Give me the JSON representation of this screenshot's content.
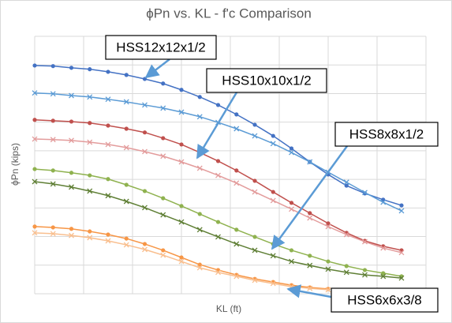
{
  "chart_data": {
    "type": "line",
    "title": "ϕPn vs. KL - f'c Comparison",
    "x_label": "KL (ft)",
    "y_label": "ϕPn (kips)",
    "x": [
      0,
      0.375,
      0.75,
      1.125,
      1.5,
      1.875,
      2.25,
      2.625,
      3,
      3.375,
      3.75,
      4.125,
      4.5,
      4.875,
      5.25,
      5.625,
      6,
      6.375,
      6.75,
      7.125,
      7.5
    ],
    "xlim": [
      0,
      8
    ],
    "xticks": [
      0,
      1,
      2,
      3,
      4,
      5,
      6,
      7,
      8
    ],
    "ylim": [
      0,
      9
    ],
    "yticks": [
      0,
      1,
      2,
      3,
      4,
      5,
      6,
      7,
      8,
      9
    ],
    "grid": true,
    "series": [
      {
        "color": "#4472c4",
        "marker": "circle",
        "values": [
          7.98,
          7.96,
          7.9,
          7.85,
          7.76,
          7.65,
          7.51,
          7.35,
          7.13,
          6.88,
          6.6,
          6.27,
          5.91,
          5.52,
          5.08,
          4.61,
          4.17,
          3.78,
          3.51,
          3.29,
          3.09
        ]
      },
      {
        "color": "#5b9bd5",
        "marker": "x",
        "values": [
          7.02,
          6.99,
          6.93,
          6.88,
          6.8,
          6.71,
          6.6,
          6.49,
          6.35,
          6.19,
          5.99,
          5.77,
          5.52,
          5.25,
          4.94,
          4.61,
          4.25,
          3.9,
          3.54,
          3.2,
          2.9
        ]
      },
      {
        "color": "#c0504d",
        "marker": "circle",
        "values": [
          6.08,
          6.05,
          6.02,
          5.97,
          5.88,
          5.77,
          5.64,
          5.44,
          5.22,
          4.94,
          4.64,
          4.31,
          3.95,
          3.56,
          3.18,
          2.82,
          2.46,
          2.13,
          1.85,
          1.66,
          1.52
        ]
      },
      {
        "color": "#e39c9c",
        "marker": "x",
        "values": [
          5.41,
          5.39,
          5.36,
          5.3,
          5.22,
          5.11,
          4.97,
          4.81,
          4.61,
          4.39,
          4.14,
          3.87,
          3.56,
          3.26,
          2.96,
          2.65,
          2.35,
          2.07,
          1.82,
          1.6,
          1.44
        ]
      },
      {
        "color": "#8fb24f",
        "marker": "circle",
        "values": [
          4.36,
          4.31,
          4.23,
          4.14,
          4.01,
          3.81,
          3.59,
          3.34,
          3.07,
          2.79,
          2.51,
          2.24,
          1.99,
          1.74,
          1.52,
          1.33,
          1.13,
          0.97,
          0.83,
          0.72,
          0.61
        ]
      },
      {
        "color": "#5f7f35",
        "marker": "x",
        "values": [
          3.92,
          3.84,
          3.73,
          3.59,
          3.43,
          3.23,
          3.01,
          2.76,
          2.51,
          2.24,
          1.99,
          1.74,
          1.52,
          1.33,
          1.13,
          0.99,
          0.86,
          0.75,
          0.66,
          0.61,
          0.55
        ]
      },
      {
        "color": "#f79646",
        "marker": "circle",
        "values": [
          2.35,
          2.32,
          2.27,
          2.18,
          2.07,
          1.93,
          1.74,
          1.52,
          1.27,
          1.02,
          0.83,
          0.66,
          0.52,
          0.41,
          0.3,
          0.22,
          0.17,
          null,
          null,
          null,
          null
        ]
      },
      {
        "color": "#f9bf8f",
        "marker": "x",
        "values": [
          2.13,
          2.1,
          2.04,
          1.96,
          1.85,
          1.71,
          1.55,
          1.35,
          1.13,
          0.91,
          0.75,
          0.61,
          0.47,
          0.36,
          0.25,
          0.19,
          0.14,
          null,
          null,
          null,
          null
        ]
      }
    ],
    "annotations": [
      "HSS12x12x1/2",
      "HSS10x10x1/2",
      "HSS8x8x1/2",
      "HSS6x6x3/8"
    ]
  }
}
